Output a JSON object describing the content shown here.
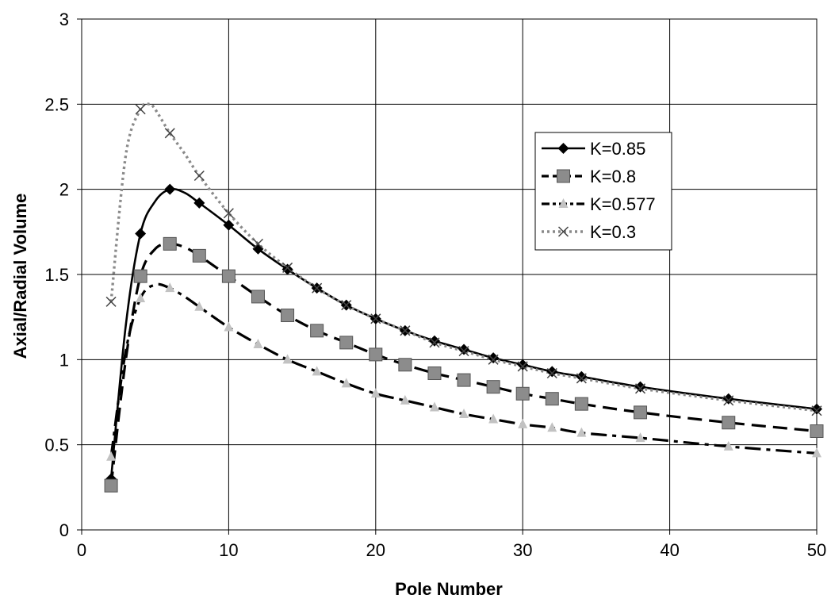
{
  "chart_data": {
    "type": "line",
    "xlabel": "Pole Number",
    "ylabel": "Axial/Radial Volume",
    "xlim": [
      0,
      50
    ],
    "ylim": [
      0,
      3
    ],
    "xticks": [
      0,
      10,
      20,
      30,
      40,
      50
    ],
    "yticks": [
      0,
      0.5,
      1,
      1.5,
      2,
      2.5,
      3
    ],
    "ytick_labels": [
      "0",
      "0.5",
      "1",
      "1.5",
      "2",
      "2.5",
      "3"
    ],
    "grid": true,
    "legend_position": "top-right",
    "series": [
      {
        "name": "K=0.85",
        "marker": "diamond-icon",
        "color": "#000000",
        "x": [
          2,
          4,
          6,
          8,
          10,
          12,
          14,
          16,
          18,
          20,
          22,
          24,
          26,
          28,
          30,
          32,
          34,
          38,
          44,
          50
        ],
        "y": [
          0.3,
          1.74,
          2.0,
          1.92,
          1.79,
          1.65,
          1.53,
          1.42,
          1.32,
          1.24,
          1.17,
          1.11,
          1.06,
          1.01,
          0.97,
          0.93,
          0.9,
          0.84,
          0.77,
          0.71
        ],
        "curve_x": [
          2,
          3,
          4,
          5,
          6,
          7,
          8,
          10,
          12,
          14,
          16,
          18,
          20,
          22,
          24,
          26,
          28,
          30,
          32,
          34,
          38,
          44,
          50
        ],
        "curve_y": [
          0.3,
          1.2,
          1.74,
          1.93,
          2.0,
          1.98,
          1.92,
          1.79,
          1.65,
          1.53,
          1.42,
          1.32,
          1.24,
          1.17,
          1.11,
          1.06,
          1.01,
          0.97,
          0.93,
          0.9,
          0.84,
          0.77,
          0.71
        ],
        "dash": "none",
        "line_color": "#000000"
      },
      {
        "name": "K=0.8",
        "marker": "square-icon",
        "color": "#7f7f7f",
        "x": [
          2,
          4,
          6,
          8,
          10,
          12,
          14,
          16,
          18,
          20,
          22,
          24,
          26,
          28,
          30,
          32,
          34,
          38,
          44,
          50
        ],
        "y": [
          0.26,
          1.49,
          1.68,
          1.61,
          1.49,
          1.37,
          1.26,
          1.17,
          1.1,
          1.03,
          0.97,
          0.92,
          0.88,
          0.84,
          0.8,
          0.77,
          0.74,
          0.69,
          0.63,
          0.58
        ],
        "curve_x": [
          2,
          3,
          4,
          5,
          6,
          7,
          8,
          10,
          12,
          14,
          16,
          18,
          20,
          22,
          24,
          26,
          28,
          30,
          32,
          34,
          38,
          44,
          50
        ],
        "curve_y": [
          0.26,
          1.0,
          1.49,
          1.65,
          1.68,
          1.66,
          1.61,
          1.49,
          1.37,
          1.26,
          1.17,
          1.1,
          1.03,
          0.97,
          0.92,
          0.88,
          0.84,
          0.8,
          0.77,
          0.74,
          0.69,
          0.63,
          0.58
        ],
        "dash": "18 9",
        "line_color": "#000000"
      },
      {
        "name": "K=0.577",
        "marker": "triangle-icon",
        "color": "#bdbdbd",
        "x": [
          2,
          4,
          6,
          8,
          10,
          12,
          14,
          16,
          18,
          20,
          22,
          24,
          26,
          28,
          30,
          32,
          34,
          38,
          44,
          50
        ],
        "y": [
          0.43,
          1.36,
          1.42,
          1.31,
          1.19,
          1.09,
          1.0,
          0.93,
          0.86,
          0.8,
          0.76,
          0.72,
          0.68,
          0.65,
          0.62,
          0.6,
          0.57,
          0.54,
          0.49,
          0.45
        ],
        "curve_x": [
          2,
          3,
          4,
          5,
          6,
          7,
          8,
          10,
          12,
          14,
          16,
          18,
          20,
          22,
          24,
          26,
          28,
          30,
          32,
          34,
          38,
          44,
          50
        ],
        "curve_y": [
          0.43,
          1.05,
          1.36,
          1.44,
          1.42,
          1.37,
          1.31,
          1.19,
          1.09,
          1.0,
          0.93,
          0.86,
          0.8,
          0.76,
          0.72,
          0.68,
          0.65,
          0.62,
          0.6,
          0.57,
          0.54,
          0.49,
          0.45
        ],
        "dash": "20 7 5 7",
        "line_color": "#000000"
      },
      {
        "name": "K=0.3",
        "marker": "x-cross-icon",
        "color": "#8a8a8a",
        "x": [
          2,
          4,
          6,
          8,
          10,
          12,
          14,
          16,
          18,
          20,
          22,
          24,
          26,
          28,
          30,
          32,
          34,
          38,
          44,
          50
        ],
        "y": [
          1.34,
          2.47,
          2.33,
          2.08,
          1.86,
          1.68,
          1.54,
          1.42,
          1.32,
          1.24,
          1.17,
          1.1,
          1.05,
          1.0,
          0.96,
          0.92,
          0.89,
          0.83,
          0.76,
          0.7
        ],
        "curve_x": [
          2,
          3,
          4,
          4.6,
          5,
          6,
          7,
          8,
          10,
          12,
          14,
          16,
          18,
          20,
          22,
          24,
          26,
          28,
          30,
          32,
          34,
          38,
          44,
          50
        ],
        "curve_y": [
          1.34,
          2.2,
          2.47,
          2.5,
          2.47,
          2.33,
          2.21,
          2.08,
          1.86,
          1.68,
          1.54,
          1.42,
          1.32,
          1.24,
          1.17,
          1.1,
          1.05,
          1.0,
          0.96,
          0.92,
          0.89,
          0.83,
          0.76,
          0.7
        ],
        "dash": "3 4",
        "line_color": "#8a8a8a"
      }
    ]
  }
}
